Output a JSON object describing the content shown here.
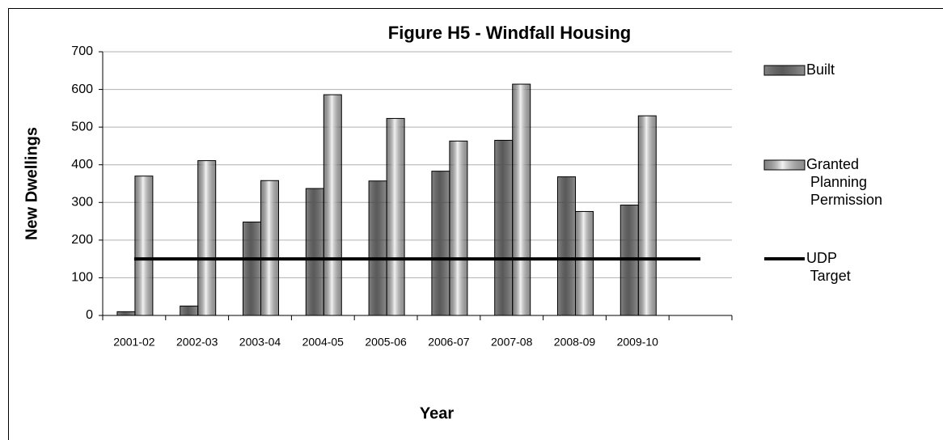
{
  "chart_data": {
    "type": "bar",
    "title": "Figure H5 - Windfall Housing",
    "x_label": "Year",
    "y_label": "New Dwellings",
    "categories": [
      "2001-02",
      "2002-03",
      "2003-04",
      "2004-05",
      "2005-06",
      "2006-07",
      "2007-08",
      "2008-09",
      "2009-10",
      null
    ],
    "series": [
      {
        "name": "Built",
        "color": "#5a5a5a",
        "values": [
          10,
          25,
          248,
          337,
          357,
          383,
          465,
          368,
          293,
          null
        ]
      },
      {
        "name": "Granted Planning Permission",
        "color": "#f2f2f2",
        "values": [
          370,
          411,
          358,
          586,
          523,
          463,
          614,
          276,
          530,
          null
        ]
      },
      {
        "name": "UDP Target",
        "type": "line",
        "color": "#000000",
        "values": [
          150,
          150,
          150,
          150,
          150,
          150,
          150,
          150,
          150,
          150
        ]
      }
    ],
    "ylim": [
      0,
      700
    ],
    "yticks": [
      0,
      100,
      200,
      300,
      400,
      500,
      600,
      700
    ],
    "grid": true,
    "legend": "right"
  }
}
